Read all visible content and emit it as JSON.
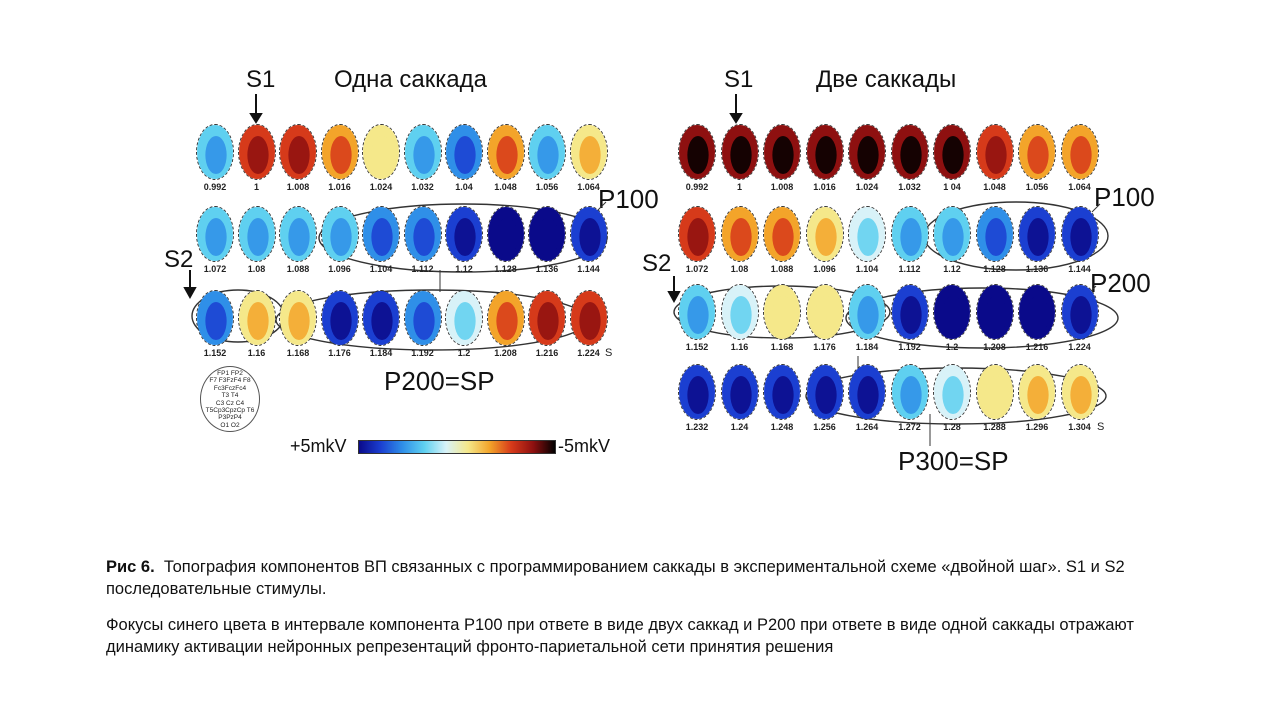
{
  "figure": {
    "left_panel": {
      "title": "Одна саккада",
      "stimulus_1": "S1",
      "stimulus_2": "S2",
      "rows": [
        {
          "times": [
            "0.992",
            "1",
            "1.008",
            "1.016",
            "1.024",
            "1.032",
            "1.04",
            "1.048",
            "1.056",
            "1.064"
          ],
          "levels": [
            0.35,
            0.78,
            0.76,
            0.7,
            0.5,
            0.3,
            0.25,
            0.65,
            0.38,
            0.55
          ]
        },
        {
          "times": [
            "1.072",
            "1.08",
            "1.088",
            "1.096",
            "1.104",
            "1.112",
            "1.12",
            "1.128",
            "1.136",
            "1.144"
          ],
          "levels": [
            0.33,
            0.32,
            0.32,
            0.3,
            0.25,
            0.18,
            0.1,
            0.05,
            0.05,
            0.1
          ]
        },
        {
          "times": [
            "1.152",
            "1.16",
            "1.168",
            "1.176",
            "1.184",
            "1.192",
            "1.2",
            "1.208",
            "1.216",
            "1.224"
          ],
          "levels": [
            0.25,
            0.55,
            0.6,
            0.15,
            0.1,
            0.2,
            0.45,
            0.65,
            0.78,
            0.8
          ]
        }
      ],
      "unit": "S",
      "markers": {
        "p100": "P100",
        "p200": "P200=SP"
      },
      "montage_lines": [
        "FP1  FP2",
        "F7 F3FzF4 F8",
        "Fc3FczFc4",
        "T3    T4",
        "C3 Cz C4",
        "T5Cp3CpzCp T6",
        "P3PzP4",
        "O1 O2"
      ],
      "colorbar": {
        "left_label": "+5mkV",
        "right_label": "-5mkV",
        "colors": [
          "#0a0a8a",
          "#1b3fd1",
          "#2f8fe8",
          "#5fd0f0",
          "#d8f2f8",
          "#f5e88a",
          "#f3a42a",
          "#d63a1a",
          "#8e1010",
          "#000000"
        ]
      }
    },
    "right_panel": {
      "title": "Две саккады",
      "stimulus_1": "S1",
      "stimulus_2": "S2",
      "rows": [
        {
          "times": [
            "0.992",
            "1",
            "1.008",
            "1.016",
            "1.024",
            "1.032",
            "1 04",
            "1.048",
            "1.056",
            "1.064"
          ],
          "levels": [
            0.85,
            0.92,
            0.88,
            0.86,
            0.86,
            0.9,
            0.88,
            0.8,
            0.72,
            0.68
          ]
        },
        {
          "times": [
            "1.072",
            "1.08",
            "1.088",
            "1.096",
            "1.104",
            "1.112",
            "1.12",
            "1.128",
            "1.136",
            "1.144"
          ],
          "levels": [
            0.75,
            0.72,
            0.68,
            0.6,
            0.45,
            0.38,
            0.3,
            0.22,
            0.15,
            0.15
          ]
        },
        {
          "times": [
            "1.152",
            "1.16",
            "1.168",
            "1.176",
            "1.184",
            "1.192",
            "1.2",
            "1.208",
            "1.216",
            "1.224"
          ],
          "levels": [
            0.35,
            0.45,
            0.5,
            0.5,
            0.38,
            0.1,
            0.05,
            0.05,
            0.05,
            0.08
          ]
        },
        {
          "times": [
            "1.232",
            "1.24",
            "1.248",
            "1.256",
            "1.264",
            "1.272",
            "1.28",
            "1.288",
            "1.296",
            "1.304"
          ],
          "levels": [
            0.1,
            0.08,
            0.08,
            0.1,
            0.15,
            0.35,
            0.45,
            0.5,
            0.55,
            0.6
          ]
        }
      ],
      "unit": "S",
      "markers": {
        "p100": "P100",
        "p200": "P200",
        "p300": "P300=SP"
      }
    }
  },
  "caption": {
    "fig_label": "Рис 6.",
    "line1": "Топография компонентов ВП связанных с программированием саккады в экспериментальной схеме «двойной шаг». S1 и S2 последовательные стимулы.",
    "line2": "Фокусы синего цвета в интервале компонента P100 при ответе в виде двух саккад  и P200 при ответе в виде одной саккады отражают динамику активации  нейронных репрезентаций фронто-париетальной сети принятия  решения"
  }
}
